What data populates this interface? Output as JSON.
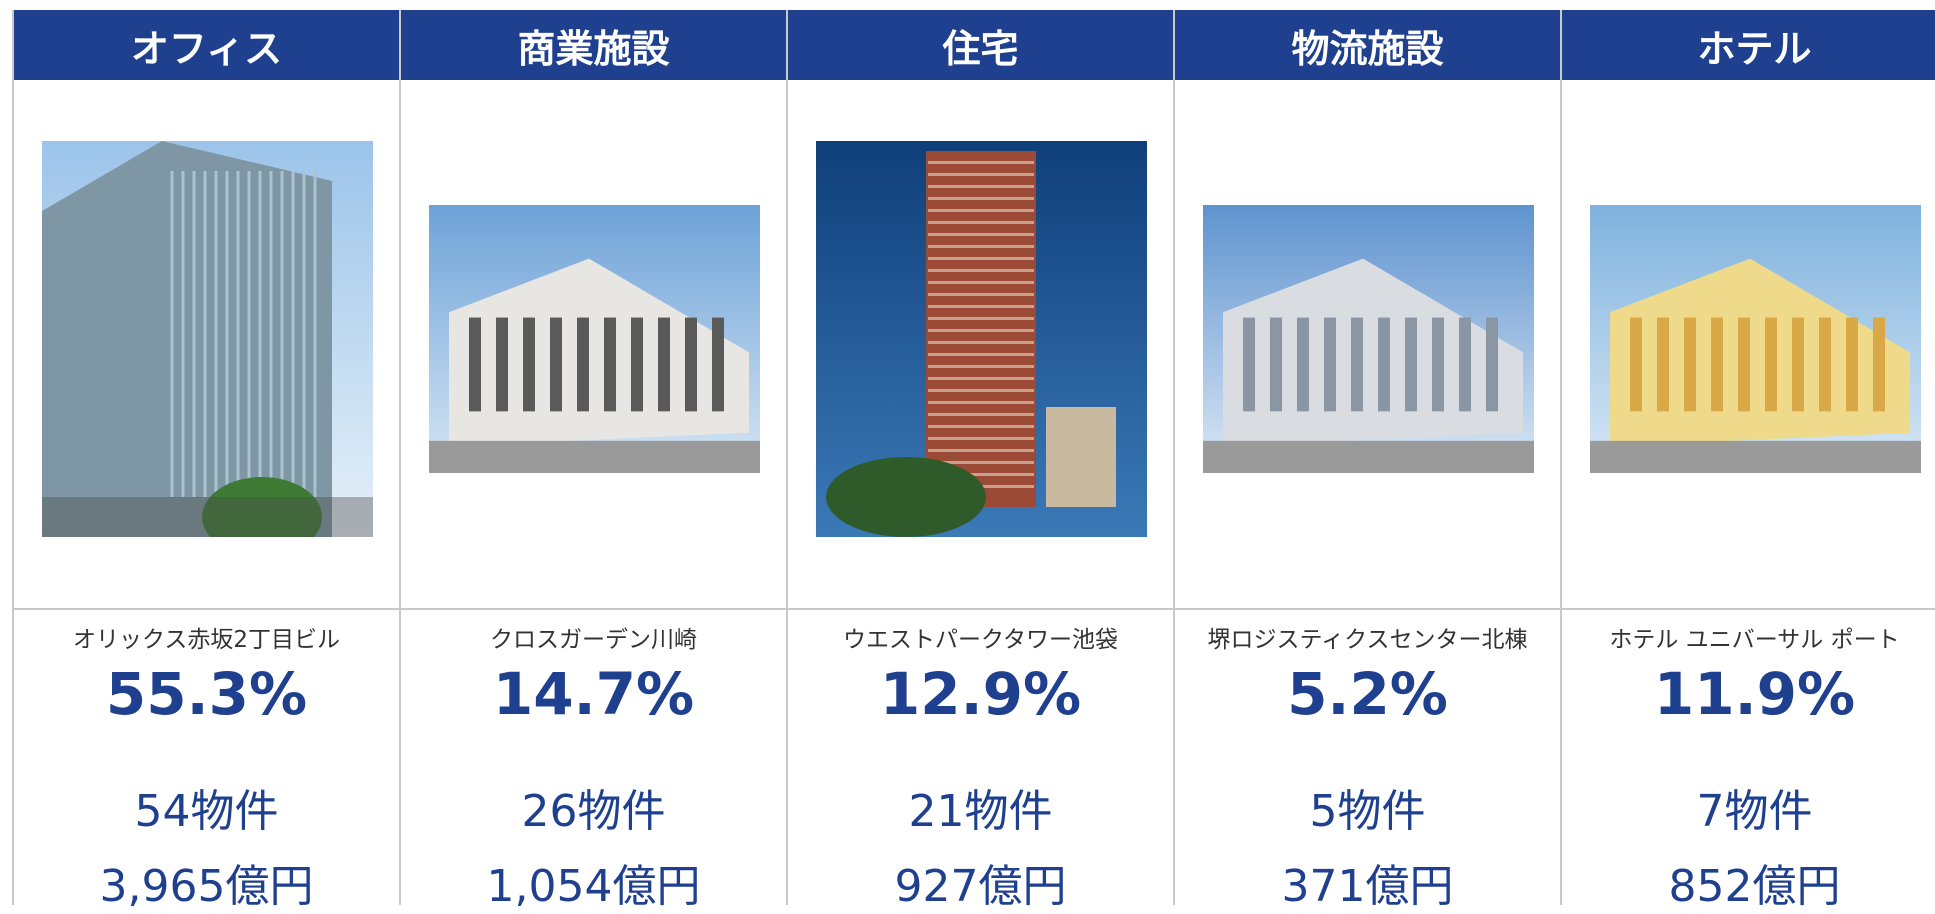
{
  "table": {
    "columns": [
      {
        "header": "オフィス",
        "caption": "オリックス赤坂2丁目ビル",
        "share": "55.3%",
        "properties": "54物件",
        "amount": "3,965億円"
      },
      {
        "header": "商業施設",
        "caption": "クロスガーデン川崎",
        "share": "14.7%",
        "properties": "26物件",
        "amount": "1,054億円"
      },
      {
        "header": "住宅",
        "caption": "ウエストパークタワー池袋",
        "share": "12.9%",
        "properties": "21物件",
        "amount": "927億円"
      },
      {
        "header": "物流施設",
        "caption": "堺ロジスティクスセンター北棟",
        "share": "5.2%",
        "properties": "5物件",
        "amount": "371億円"
      },
      {
        "header": "ホテル",
        "caption": "ホテル ユニバーサル ポート",
        "share": "11.9%",
        "properties": "7物件",
        "amount": "852億円"
      }
    ]
  }
}
